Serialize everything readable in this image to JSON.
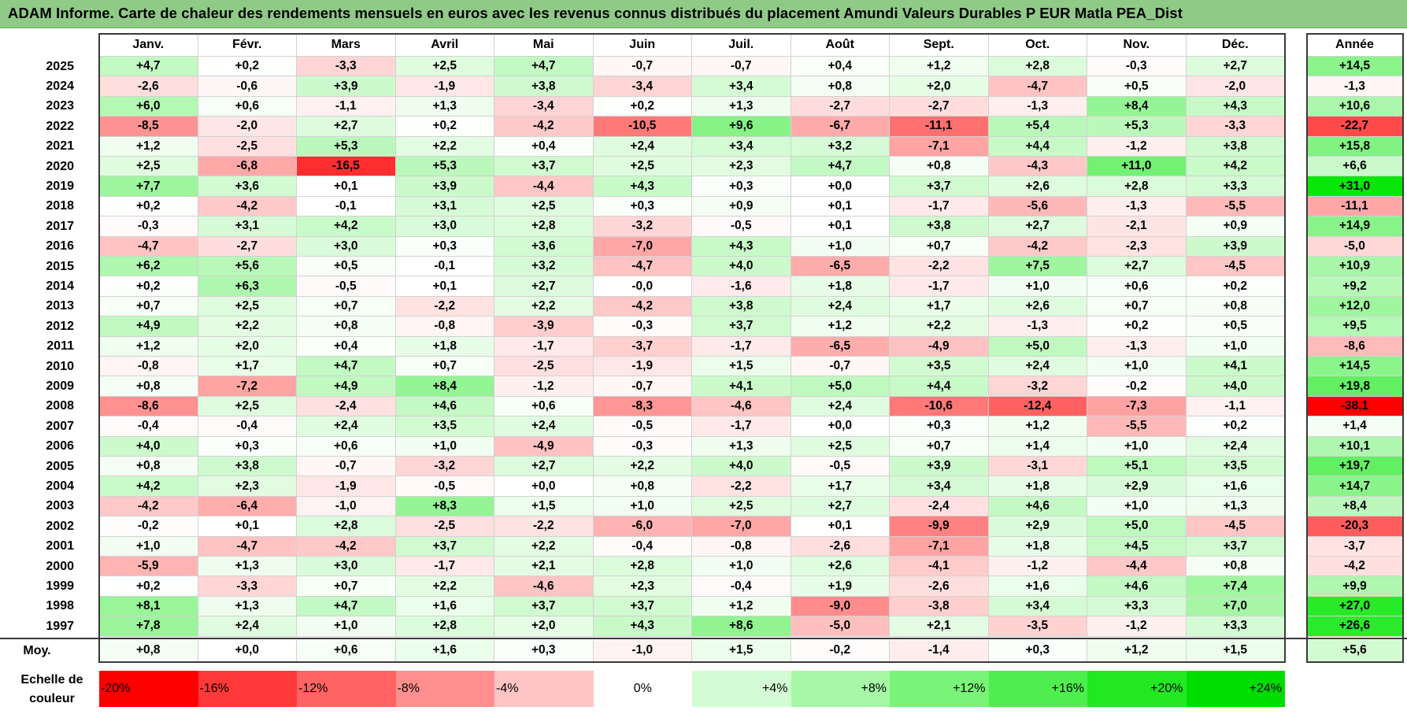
{
  "title": "ADAM Informe. Carte de chaleur des rendements mensuels en euros avec les revenus connus distribués du placement Amundi Valeurs Durables P EUR Matla PEA_Dist",
  "colors": {
    "title_bg": "#8fca86",
    "neg_max": "#ff0000",
    "pos_max": "#00e000",
    "neutral": "#ffffff"
  },
  "chart_data": {
    "type": "heatmap",
    "title": "ADAM Informe. Carte de chaleur des rendements mensuels en euros avec les revenus connus distribués du placement Amundi Valeurs Durables P EUR Matla PEA_Dist",
    "months": [
      "Janv.",
      "Févr.",
      "Mars",
      "Avril",
      "Mai",
      "Juin",
      "Juil.",
      "Août",
      "Sept.",
      "Oct.",
      "Nov.",
      "Déc."
    ],
    "year_header": "Année",
    "rows": [
      {
        "year": "2025",
        "values": [
          "+4,7",
          "+0,2",
          "-3,3",
          "+2,5",
          "+4,7",
          "-0,7",
          "-0,7",
          "+0,4",
          "+1,2",
          "+2,8",
          "-0,3",
          "+2,7"
        ],
        "annual": "+14,5"
      },
      {
        "year": "2024",
        "values": [
          "-2,6",
          "-0,6",
          "+3,9",
          "-1,9",
          "+3,8",
          "-3,4",
          "+3,4",
          "+0,8",
          "+2,0",
          "-4,7",
          "+0,5",
          "-2,0"
        ],
        "annual": "-1,3"
      },
      {
        "year": "2023",
        "values": [
          "+6,0",
          "+0,6",
          "-1,1",
          "+1,3",
          "-3,4",
          "+0,2",
          "+1,3",
          "-2,7",
          "-2,7",
          "-1,3",
          "+8,4",
          "+4,3"
        ],
        "annual": "+10,6"
      },
      {
        "year": "2022",
        "values": [
          "-8,5",
          "-2,0",
          "+2,7",
          "+0,2",
          "-4,2",
          "-10,5",
          "+9,6",
          "-6,7",
          "-11,1",
          "+5,4",
          "+5,3",
          "-3,3"
        ],
        "annual": "-22,7"
      },
      {
        "year": "2021",
        "values": [
          "+1,2",
          "-2,5",
          "+5,3",
          "+2,2",
          "+0,4",
          "+2,4",
          "+3,4",
          "+3,2",
          "-7,1",
          "+4,4",
          "-1,2",
          "+3,8"
        ],
        "annual": "+15,8"
      },
      {
        "year": "2020",
        "values": [
          "+2,5",
          "-6,8",
          "-16,5",
          "+5,3",
          "+3,7",
          "+2,5",
          "+2,3",
          "+4,7",
          "+0,8",
          "-4,3",
          "+11,0",
          "+4,2"
        ],
        "annual": "+6,6"
      },
      {
        "year": "2019",
        "values": [
          "+7,7",
          "+3,6",
          "+0,1",
          "+3,9",
          "-4,4",
          "+4,3",
          "+0,3",
          "+0,0",
          "+3,7",
          "+2,6",
          "+2,8",
          "+3,3"
        ],
        "annual": "+31,0"
      },
      {
        "year": "2018",
        "values": [
          "+0,2",
          "-4,2",
          "-0,1",
          "+3,1",
          "+2,5",
          "+0,3",
          "+0,9",
          "+0,1",
          "-1,7",
          "-5,6",
          "-1,3",
          "-5,5"
        ],
        "annual": "-11,1"
      },
      {
        "year": "2017",
        "values": [
          "-0,3",
          "+3,1",
          "+4,2",
          "+3,0",
          "+2,8",
          "-3,2",
          "-0,5",
          "+0,1",
          "+3,8",
          "+2,7",
          "-2,1",
          "+0,9"
        ],
        "annual": "+14,9"
      },
      {
        "year": "2016",
        "values": [
          "-4,7",
          "-2,7",
          "+3,0",
          "+0,3",
          "+3,6",
          "-7,0",
          "+4,3",
          "+1,0",
          "+0,7",
          "-4,2",
          "-2,3",
          "+3,9"
        ],
        "annual": "-5,0"
      },
      {
        "year": "2015",
        "values": [
          "+6,2",
          "+5,6",
          "+0,5",
          "-0,1",
          "+3,2",
          "-4,7",
          "+4,0",
          "-6,5",
          "-2,2",
          "+7,5",
          "+2,7",
          "-4,5"
        ],
        "annual": "+10,9"
      },
      {
        "year": "2014",
        "values": [
          "+0,2",
          "+6,3",
          "-0,5",
          "+0,1",
          "+2,7",
          "-0,0",
          "-1,6",
          "+1,8",
          "-1,7",
          "+1,0",
          "+0,6",
          "+0,2"
        ],
        "annual": "+9,2"
      },
      {
        "year": "2013",
        "values": [
          "+0,7",
          "+2,5",
          "+0,7",
          "-2,2",
          "+2,2",
          "-4,2",
          "+3,8",
          "+2,4",
          "+1,7",
          "+2,6",
          "+0,7",
          "+0,8"
        ],
        "annual": "+12,0"
      },
      {
        "year": "2012",
        "values": [
          "+4,9",
          "+2,2",
          "+0,8",
          "-0,8",
          "-3,9",
          "-0,3",
          "+3,7",
          "+1,2",
          "+2,2",
          "-1,3",
          "+0,2",
          "+0,5"
        ],
        "annual": "+9,5"
      },
      {
        "year": "2011",
        "values": [
          "+1,2",
          "+2,0",
          "+0,4",
          "+1,8",
          "-1,7",
          "-3,7",
          "-1,7",
          "-6,5",
          "-4,9",
          "+5,0",
          "-1,3",
          "+1,0"
        ],
        "annual": "-8,6"
      },
      {
        "year": "2010",
        "values": [
          "-0,8",
          "+1,7",
          "+4,7",
          "+0,7",
          "-2,5",
          "-1,9",
          "+1,5",
          "-0,7",
          "+3,5",
          "+2,4",
          "+1,0",
          "+4,1"
        ],
        "annual": "+14,5"
      },
      {
        "year": "2009",
        "values": [
          "+0,8",
          "-7,2",
          "+4,9",
          "+8,4",
          "-1,2",
          "-0,7",
          "+4,1",
          "+5,0",
          "+4,4",
          "-3,2",
          "-0,2",
          "+4,0"
        ],
        "annual": "+19,8"
      },
      {
        "year": "2008",
        "values": [
          "-8,6",
          "+2,5",
          "-2,4",
          "+4,6",
          "+0,6",
          "-8,3",
          "-4,6",
          "+2,4",
          "-10,6",
          "-12,4",
          "-7,3",
          "-1,1"
        ],
        "annual": "-38,1"
      },
      {
        "year": "2007",
        "values": [
          "-0,4",
          "-0,4",
          "+2,4",
          "+3,5",
          "+2,4",
          "-0,5",
          "-1,7",
          "+0,0",
          "+0,3",
          "+1,2",
          "-5,5",
          "+0,2"
        ],
        "annual": "+1,4"
      },
      {
        "year": "2006",
        "values": [
          "+4,0",
          "+0,3",
          "+0,6",
          "+1,0",
          "-4,9",
          "-0,3",
          "+1,3",
          "+2,5",
          "+0,7",
          "+1,4",
          "+1,0",
          "+2,4"
        ],
        "annual": "+10,1"
      },
      {
        "year": "2005",
        "values": [
          "+0,8",
          "+3,8",
          "-0,7",
          "-3,2",
          "+2,7",
          "+2,2",
          "+4,0",
          "-0,5",
          "+3,9",
          "-3,1",
          "+5,1",
          "+3,5"
        ],
        "annual": "+19,7"
      },
      {
        "year": "2004",
        "values": [
          "+4,2",
          "+2,3",
          "-1,9",
          "-0,5",
          "+0,0",
          "+0,8",
          "-2,2",
          "+1,7",
          "+3,4",
          "+1,8",
          "+2,9",
          "+1,6"
        ],
        "annual": "+14,7"
      },
      {
        "year": "2003",
        "values": [
          "-4,2",
          "-6,4",
          "-1,0",
          "+8,3",
          "+1,5",
          "+1,0",
          "+2,5",
          "+2,7",
          "-2,4",
          "+4,6",
          "+1,0",
          "+1,3"
        ],
        "annual": "+8,4"
      },
      {
        "year": "2002",
        "values": [
          "-0,2",
          "+0,1",
          "+2,8",
          "-2,5",
          "-2,2",
          "-6,0",
          "-7,0",
          "+0,1",
          "-9,9",
          "+2,9",
          "+5,0",
          "-4,5"
        ],
        "annual": "-20,3"
      },
      {
        "year": "2001",
        "values": [
          "+1,0",
          "-4,7",
          "-4,2",
          "+3,7",
          "+2,2",
          "-0,4",
          "-0,8",
          "-2,6",
          "-7,1",
          "+1,8",
          "+4,5",
          "+3,7"
        ],
        "annual": "-3,7"
      },
      {
        "year": "2000",
        "values": [
          "-5,9",
          "+1,3",
          "+3,0",
          "-1,7",
          "+2,1",
          "+2,8",
          "+1,0",
          "+2,6",
          "-4,1",
          "-1,2",
          "-4,4",
          "+0,8"
        ],
        "annual": "-4,2"
      },
      {
        "year": "1999",
        "values": [
          "+0,2",
          "-3,3",
          "+0,7",
          "+2,2",
          "-4,6",
          "+2,3",
          "-0,4",
          "+1,9",
          "-2,6",
          "+1,6",
          "+4,6",
          "+7,4"
        ],
        "annual": "+9,9"
      },
      {
        "year": "1998",
        "values": [
          "+8,1",
          "+1,3",
          "+4,7",
          "+1,6",
          "+3,7",
          "+3,7",
          "+1,2",
          "-9,0",
          "-3,8",
          "+3,4",
          "+3,3",
          "+7,0"
        ],
        "annual": "+27,0"
      },
      {
        "year": "1997",
        "values": [
          "+7,8",
          "+2,4",
          "+1,0",
          "+2,8",
          "+2,0",
          "+4,3",
          "+8,6",
          "-5,0",
          "+2,1",
          "-3,5",
          "-1,2",
          "+3,3"
        ],
        "annual": "+26,6"
      }
    ],
    "average": {
      "label": "Moy.",
      "values": [
        "+0,8",
        "+0,0",
        "+0,6",
        "+1,6",
        "+0,3",
        "-1,0",
        "+1,5",
        "-0,2",
        "-1,4",
        "+0,3",
        "+1,2",
        "+1,5"
      ],
      "annual": "+5,6"
    },
    "scale": {
      "label": "Echelle de couleur",
      "steps": [
        {
          "text": "-20%",
          "color": "#ff0000"
        },
        {
          "text": "-16%",
          "color": "#ff3838"
        },
        {
          "text": "-12%",
          "color": "#ff6363"
        },
        {
          "text": "-8%",
          "color": "#ff8f8f"
        },
        {
          "text": "-4%",
          "color": "#ffc4c4"
        },
        {
          "text": "0%",
          "color": "#ffffff"
        },
        {
          "text": "+4%",
          "color": "#d4fcd4"
        },
        {
          "text": "+8%",
          "color": "#a6f8a6"
        },
        {
          "text": "+12%",
          "color": "#79f479"
        },
        {
          "text": "+16%",
          "color": "#4eee4e"
        },
        {
          "text": "+20%",
          "color": "#22e822"
        },
        {
          "text": "+24%",
          "color": "#00dd00"
        }
      ]
    }
  }
}
